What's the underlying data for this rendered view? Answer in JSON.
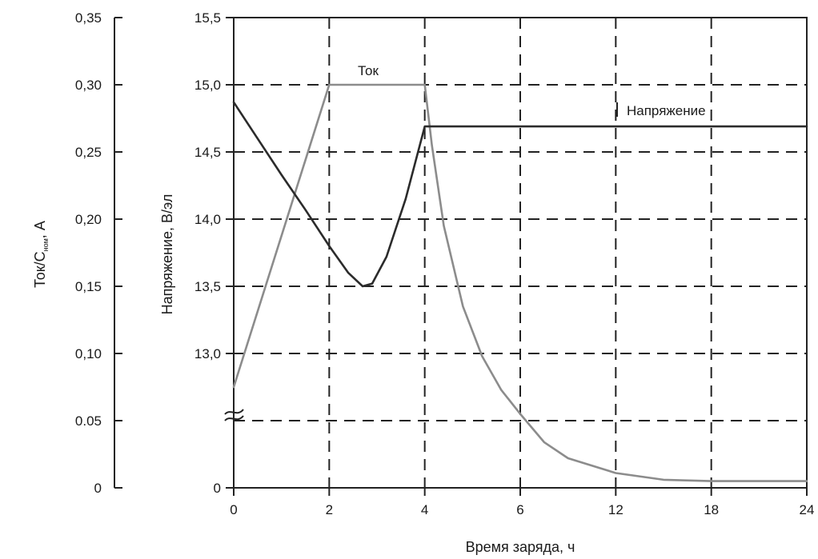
{
  "chart_data": {
    "type": "line",
    "title": "",
    "xlabel": "Время заряда, ч",
    "ylabel_left": "Ток/С",
    "ylabel_left_sub": "ном",
    "ylabel_left_unit": ", А",
    "ylabel_right": "Напряжение,  В/эл",
    "x_tick_labels": [
      "0",
      "2",
      "4",
      "6",
      "12",
      "18",
      "24"
    ],
    "current_axis_ticks": [
      "0,35",
      "0,30",
      "0,25",
      "0,20",
      "0,15",
      "0,10",
      "0.05",
      "0"
    ],
    "voltage_axis_ticks": [
      "15,5",
      "15,0",
      "14,5",
      "14,0",
      "13,5",
      "13,0",
      "0"
    ],
    "voltage_axis_values": [
      15.5,
      15.0,
      14.5,
      14.0,
      13.5,
      13.0
    ],
    "series": [
      {
        "name": "Ток",
        "axis": "current",
        "color": "#8c8c8c",
        "x": [
          0,
          2,
          4,
          4.15,
          4.4,
          4.8,
          5.2,
          5.6,
          6,
          7.5,
          9,
          12,
          15,
          18,
          21,
          24
        ],
        "y": [
          0.075,
          0.3,
          0.3,
          0.255,
          0.195,
          0.135,
          0.098,
          0.073,
          0.055,
          0.034,
          0.022,
          0.011,
          0.006,
          0.005,
          0.005,
          0.005
        ]
      },
      {
        "name": "Напряжение",
        "axis": "voltage",
        "color": "#2b2b2b",
        "x": [
          0,
          0.5,
          1,
          1.5,
          2,
          2.4,
          2.7,
          2.9,
          3.2,
          3.6,
          4,
          4.2,
          6,
          12,
          18,
          24
        ],
        "y": [
          14.87,
          14.6,
          14.33,
          14.07,
          13.8,
          13.6,
          13.5,
          13.52,
          13.72,
          14.15,
          14.69,
          14.69,
          14.69,
          14.69,
          14.69,
          14.69
        ]
      }
    ],
    "annotations": [
      {
        "text": "Ток",
        "series": "Ток"
      },
      {
        "text": "Напряжение",
        "series": "Напряжение"
      }
    ],
    "grid": true,
    "axis_break": true
  }
}
